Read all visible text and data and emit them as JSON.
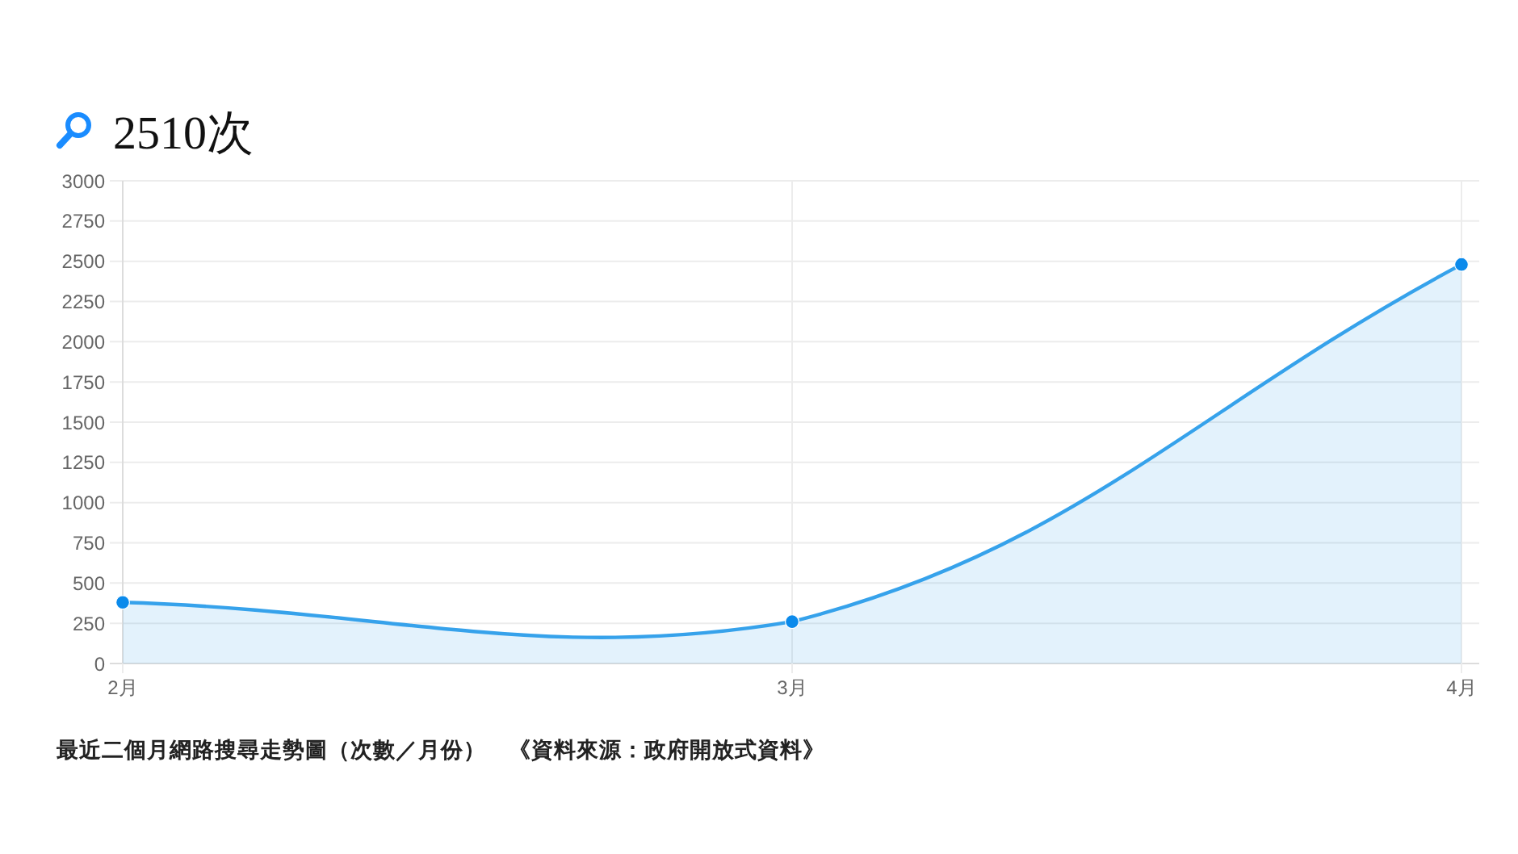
{
  "chart_data": {
    "type": "area",
    "title": "2510次",
    "categories": [
      "2月",
      "3月",
      "4月"
    ],
    "series": [
      {
        "color": "#36a2eb",
        "values": [
          380,
          260,
          2480
        ]
      }
    ],
    "ylim": [
      0,
      3000
    ],
    "yticks": [
      0,
      250,
      500,
      750,
      1000,
      1250,
      1500,
      1750,
      2000,
      2250,
      2500,
      2750,
      3000
    ],
    "grid": true,
    "marker": "circle",
    "annotations": [
      "最近二個月網路搜尋走勢圖（次數／月份）",
      "《資料來源：政府開放式資料》"
    ]
  }
}
